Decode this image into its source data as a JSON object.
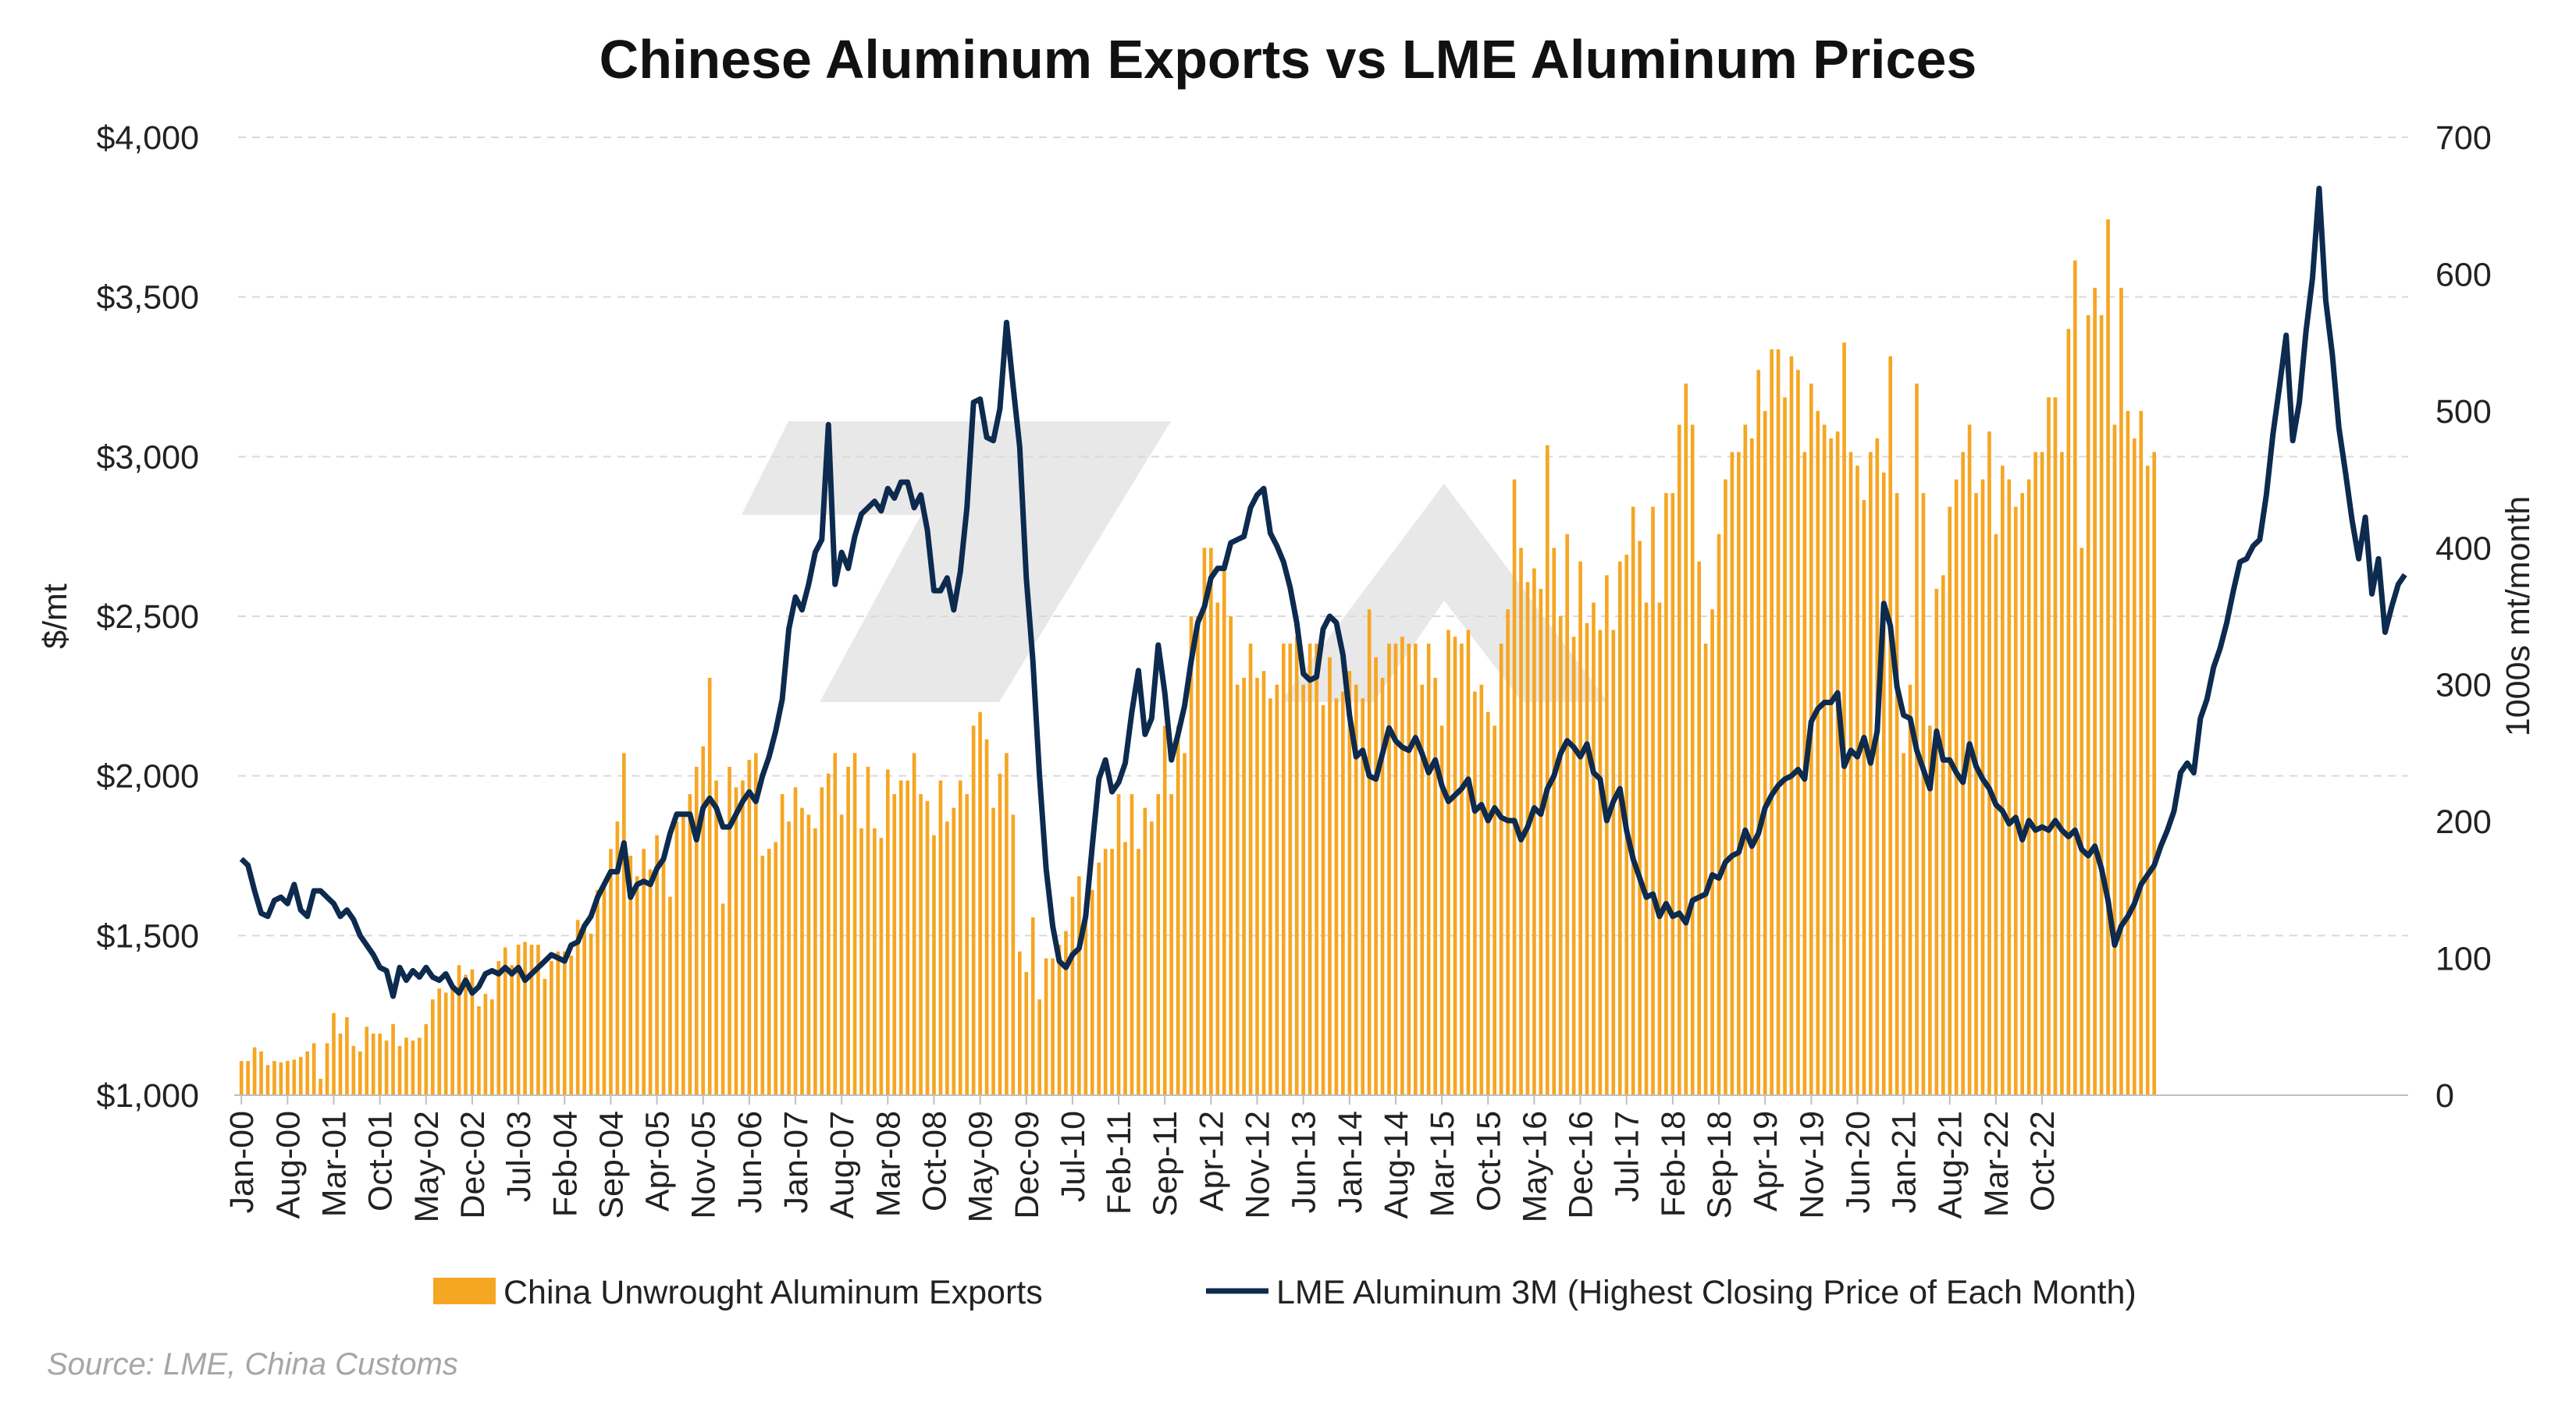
{
  "chart_data": {
    "type": "bar+line",
    "title": "Chinese Aluminum Exports vs LME Aluminum Prices",
    "source": "Source: LME, China Customs",
    "left_axis": {
      "label": "$/mt",
      "min": 1000,
      "max": 4000,
      "ticks": [
        "$1,000",
        "$1,500",
        "$2,000",
        "$2,500",
        "$3,000",
        "$3,500",
        "$4,000"
      ]
    },
    "right_axis": {
      "label": "1000s mt/month",
      "min": 0,
      "max": 700,
      "ticks": [
        "0",
        "100",
        "200",
        "300",
        "400",
        "500",
        "600",
        "700"
      ]
    },
    "x_axis": {
      "start": "2000-01",
      "end": "2023-02",
      "tick_labels": [
        "Jan-00",
        "Aug-00",
        "Mar-01",
        "Oct-01",
        "May-02",
        "Dec-02",
        "Jul-03",
        "Feb-04",
        "Sep-04",
        "Apr-05",
        "Nov-05",
        "Jun-06",
        "Jan-07",
        "Aug-07",
        "Mar-08",
        "Oct-08",
        "May-09",
        "Dec-09",
        "Jul-10",
        "Feb-11",
        "Sep-11",
        "Apr-12",
        "Nov-12",
        "Jun-13",
        "Jan-14",
        "Aug-14",
        "Mar-15",
        "Oct-15",
        "May-16",
        "Dec-16",
        "Jul-17",
        "Feb-18",
        "Sep-18",
        "Apr-19",
        "Nov-19",
        "Jun-20",
        "Jan-21",
        "Aug-21",
        "Mar-22",
        "Oct-22"
      ]
    },
    "legend_position": "bottom",
    "grid": "horizontal",
    "colors": {
      "bars": "#f5a623",
      "line": "#0d2a4f",
      "grid": "#d9d9d9",
      "watermark": "#e6e6e6"
    },
    "series": [
      {
        "name": "China Unwrought Aluminum Exports",
        "axis": "right",
        "kind": "bar",
        "values": [
          25,
          25,
          35,
          32,
          22,
          25,
          24,
          25,
          26,
          28,
          32,
          38,
          12,
          38,
          60,
          45,
          57,
          36,
          32,
          50,
          45,
          45,
          40,
          52,
          36,
          42,
          40,
          42,
          52,
          70,
          78,
          75,
          80,
          95,
          88,
          92,
          65,
          74,
          70,
          98,
          108,
          95,
          110,
          112,
          110,
          110,
          85,
          98,
          105,
          105,
          102,
          128,
          122,
          118,
          150,
          156,
          180,
          200,
          250,
          175,
          160,
          180,
          165,
          190,
          175,
          145,
          200,
          205,
          220,
          240,
          255,
          305,
          230,
          140,
          240,
          225,
          230,
          245,
          250,
          175,
          180,
          185,
          220,
          200,
          225,
          210,
          205,
          195,
          225,
          235,
          250,
          205,
          240,
          250,
          195,
          240,
          195,
          188,
          238,
          220,
          230,
          230,
          250,
          220,
          215,
          190,
          230,
          200,
          210,
          230,
          220,
          270,
          280,
          260,
          210,
          235,
          250,
          205,
          105,
          90,
          130,
          70,
          100,
          100,
          110,
          120,
          145,
          160,
          140,
          150,
          170,
          180,
          180,
          220,
          185,
          220,
          180,
          210,
          200,
          220,
          270,
          220,
          270,
          250,
          350,
          350,
          400,
          400,
          360,
          390,
          350,
          300,
          305,
          330,
          305,
          310,
          290,
          300,
          330,
          330,
          335,
          300,
          330,
          330,
          285,
          320,
          290,
          295,
          310,
          300,
          290,
          355,
          320,
          305,
          330,
          330,
          335,
          330,
          330,
          300,
          330,
          305,
          270,
          340,
          335,
          330,
          340,
          295,
          300,
          280,
          270,
          330,
          355,
          450,
          400,
          375,
          385,
          370,
          475,
          400,
          350,
          410,
          335,
          390,
          345,
          360,
          340,
          380,
          340,
          390,
          395,
          430,
          405,
          360,
          430,
          360,
          440,
          440,
          490,
          520,
          490,
          390,
          330,
          355,
          410,
          450,
          470,
          470,
          490,
          480,
          530,
          500,
          545,
          545,
          510,
          540,
          530,
          470,
          520,
          500,
          490,
          480,
          485,
          550,
          470,
          460,
          435,
          470,
          480,
          455,
          540,
          440,
          250,
          300,
          520,
          440,
          270,
          370,
          380,
          430,
          450,
          470,
          490,
          440,
          450,
          485,
          410,
          460,
          450,
          430,
          440,
          450,
          470,
          470,
          510,
          510,
          470,
          560,
          610,
          400,
          570,
          590,
          570,
          640,
          490,
          590,
          500,
          480,
          500,
          460,
          470
        ]
      },
      {
        "name": "LME Aluminum 3M (Highest Closing Price of Each Month)",
        "axis": "left",
        "kind": "line",
        "values": [
          1740,
          1720,
          1640,
          1570,
          1560,
          1610,
          1620,
          1600,
          1660,
          1580,
          1560,
          1640,
          1640,
          1620,
          1600,
          1560,
          1580,
          1550,
          1500,
          1470,
          1440,
          1400,
          1390,
          1310,
          1400,
          1360,
          1390,
          1370,
          1400,
          1370,
          1360,
          1380,
          1340,
          1320,
          1360,
          1320,
          1340,
          1380,
          1390,
          1380,
          1400,
          1380,
          1400,
          1360,
          1380,
          1400,
          1420,
          1440,
          1430,
          1420,
          1470,
          1480,
          1530,
          1560,
          1620,
          1660,
          1700,
          1700,
          1790,
          1620,
          1660,
          1670,
          1660,
          1710,
          1740,
          1820,
          1880,
          1880,
          1880,
          1800,
          1900,
          1930,
          1900,
          1840,
          1840,
          1880,
          1920,
          1950,
          1920,
          2000,
          2060,
          2140,
          2240,
          2460,
          2560,
          2520,
          2600,
          2700,
          2740,
          3100,
          2600,
          2700,
          2650,
          2750,
          2820,
          2840,
          2860,
          2830,
          2900,
          2870,
          2920,
          2920,
          2840,
          2880,
          2770,
          2580,
          2580,
          2620,
          2520,
          2640,
          2840,
          3170,
          3180,
          3060,
          3050,
          3150,
          3420,
          3220,
          3030,
          2620,
          2360,
          2000,
          1710,
          1530,
          1420,
          1400,
          1440,
          1460,
          1560,
          1780,
          1990,
          2050,
          1950,
          1980,
          2040,
          2200,
          2330,
          2130,
          2180,
          2410,
          2260,
          2050,
          2130,
          2220,
          2360,
          2480,
          2530,
          2620,
          2650,
          2650,
          2730,
          2740,
          2750,
          2840,
          2880,
          2900,
          2760,
          2720,
          2670,
          2590,
          2480,
          2320,
          2300,
          2310,
          2460,
          2500,
          2480,
          2380,
          2190,
          2060,
          2080,
          2000,
          1990,
          2070,
          2150,
          2110,
          2090,
          2080,
          2120,
          2070,
          2010,
          2050,
          1970,
          1920,
          1940,
          1960,
          1990,
          1890,
          1910,
          1860,
          1900,
          1870,
          1860,
          1860,
          1800,
          1840,
          1900,
          1880,
          1960,
          2000,
          2070,
          2110,
          2090,
          2060,
          2100,
          2010,
          1990,
          1860,
          1920,
          1960,
          1830,
          1740,
          1680,
          1620,
          1630,
          1560,
          1600,
          1560,
          1570,
          1540,
          1610,
          1620,
          1630,
          1690,
          1680,
          1730,
          1750,
          1760,
          1830,
          1780,
          1820,
          1900,
          1940,
          1970,
          1990,
          2000,
          2020,
          1990,
          2170,
          2210,
          2230,
          2230,
          2260,
          2030,
          2080,
          2060,
          2120,
          2040,
          2140,
          2540,
          2470,
          2280,
          2190,
          2180,
          2080,
          2020,
          1960,
          2140,
          2050,
          2050,
          2010,
          1980,
          2100,
          2030,
          1990,
          1960,
          1910,
          1890,
          1850,
          1870,
          1800,
          1860,
          1830,
          1840,
          1830,
          1860,
          1830,
          1810,
          1830,
          1770,
          1750,
          1780,
          1710,
          1610,
          1470,
          1530,
          1560,
          1600,
          1660,
          1690,
          1720,
          1780,
          1830,
          1890,
          2010,
          2040,
          2010,
          2180,
          2240,
          2340,
          2400,
          2480,
          2580,
          2670,
          2680,
          2720,
          2740,
          2880,
          3070,
          3220,
          3380,
          3050,
          3170,
          3390,
          3560,
          3840,
          3490,
          3320,
          3090,
          2950,
          2800,
          2680,
          2810,
          2570,
          2680,
          2450,
          2530,
          2600,
          2630
        ]
      }
    ]
  }
}
